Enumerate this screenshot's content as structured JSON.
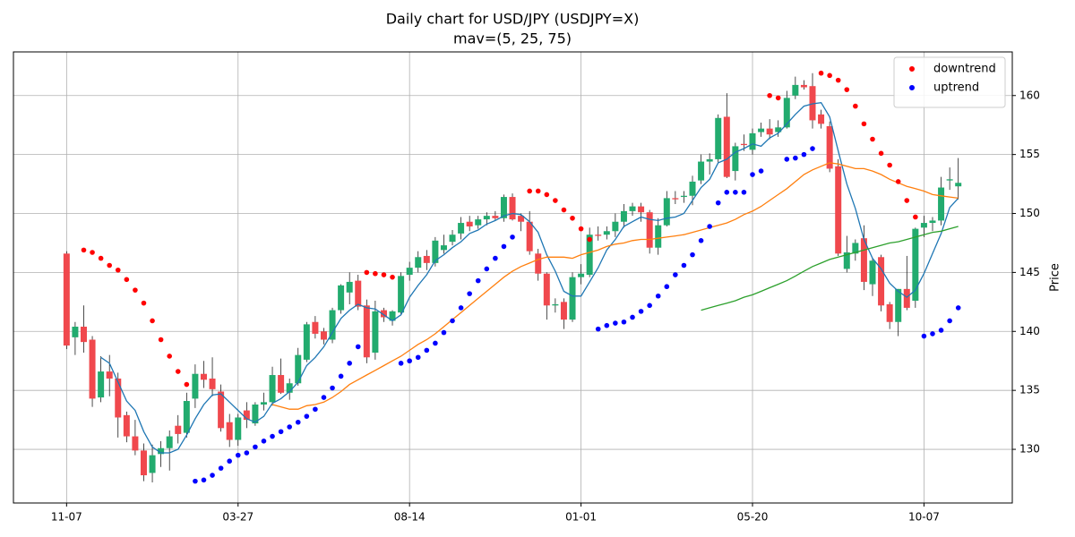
{
  "chart_data": {
    "type": "candlestick",
    "title": "Daily chart for USD/JPY (USDJPY=X)",
    "subtitle": "mav=(5, 25, 75)",
    "y_label": "Price",
    "categories": [
      "11-07",
      null,
      null,
      null,
      null,
      null,
      null,
      null,
      null,
      null,
      null,
      null,
      null,
      null,
      null,
      null,
      null,
      null,
      null,
      null,
      "03-27",
      null,
      null,
      null,
      null,
      null,
      null,
      null,
      null,
      null,
      null,
      null,
      null,
      null,
      null,
      null,
      null,
      null,
      null,
      null,
      "08-14",
      null,
      null,
      null,
      null,
      null,
      null,
      null,
      null,
      null,
      null,
      null,
      null,
      null,
      null,
      null,
      null,
      null,
      null,
      null,
      "01-01",
      null,
      null,
      null,
      null,
      null,
      null,
      null,
      null,
      null,
      null,
      null,
      null,
      null,
      null,
      null,
      null,
      null,
      null,
      null,
      "05-20",
      null,
      null,
      null,
      null,
      null,
      null,
      null,
      null,
      null,
      null,
      null,
      null,
      null,
      null,
      null,
      null,
      null,
      null,
      null,
      "10-07",
      null,
      null,
      null,
      null
    ],
    "open": [
      146.6,
      139.5,
      140.4,
      139.3,
      134.4,
      136.6,
      136.0,
      132.9,
      131.1,
      129.9,
      128.0,
      129.6,
      130.1,
      132.0,
      131.4,
      134.3,
      136.4,
      136.0,
      134.9,
      132.3,
      130.8,
      133.3,
      132.2,
      133.8,
      134.0,
      136.3,
      134.8,
      135.6,
      137.6,
      140.8,
      140.0,
      139.3,
      141.8,
      143.3,
      144.3,
      142.2,
      138.2,
      141.8,
      140.9,
      141.6,
      144.8,
      145.4,
      146.4,
      145.8,
      146.9,
      147.6,
      148.3,
      149.3,
      149.0,
      149.5,
      149.8,
      149.6,
      151.4,
      149.8,
      149.3,
      146.6,
      144.9,
      142.2,
      142.5,
      141.0,
      144.6,
      144.8,
      148.2,
      148.2,
      148.5,
      149.3,
      150.2,
      150.6,
      150.1,
      147.1,
      149.0,
      151.3,
      151.4,
      151.5,
      152.8,
      154.4,
      154.6,
      158.2,
      153.6,
      155.9,
      155.4,
      156.9,
      157.2,
      156.9,
      157.3,
      160.0,
      160.9,
      160.8,
      158.4,
      157.4,
      154.0,
      145.3,
      146.6,
      147.9,
      144.0,
      146.3,
      142.3,
      140.8,
      143.6,
      142.6,
      148.8,
      149.2,
      149.4,
      152.8,
      152.3
    ],
    "high": [
      146.8,
      140.8,
      142.2,
      139.6,
      137.9,
      138.0,
      136.5,
      133.2,
      132.5,
      130.5,
      130.4,
      130.7,
      131.6,
      132.9,
      134.8,
      137.2,
      137.5,
      137.8,
      135.5,
      133.0,
      133.0,
      134.0,
      134.0,
      134.8,
      137.0,
      137.7,
      136.0,
      138.6,
      140.8,
      141.3,
      140.3,
      142.0,
      144.0,
      145.0,
      144.8,
      142.7,
      142.6,
      142.0,
      141.8,
      145.0,
      145.9,
      146.8,
      146.9,
      148.0,
      148.2,
      148.6,
      149.7,
      149.8,
      149.8,
      150.1,
      150.2,
      151.6,
      151.7,
      150.0,
      150.2,
      147.0,
      145.0,
      142.8,
      142.8,
      145.0,
      145.7,
      148.8,
      148.9,
      148.9,
      150.0,
      150.8,
      150.9,
      150.9,
      150.3,
      149.6,
      151.9,
      151.9,
      151.9,
      153.2,
      155.0,
      155.1,
      158.4,
      160.2,
      156.0,
      156.7,
      157.2,
      157.7,
      158.0,
      157.9,
      160.4,
      161.6,
      161.3,
      161.9,
      158.8,
      157.8,
      154.6,
      148.1,
      147.8,
      149.0,
      146.2,
      146.5,
      142.5,
      143.6,
      146.4,
      148.8,
      149.8,
      149.7,
      153.1,
      153.9,
      154.7
    ],
    "low": [
      138.5,
      138.0,
      138.2,
      133.6,
      134.0,
      134.5,
      131.0,
      130.6,
      129.5,
      127.3,
      127.2,
      128.5,
      128.2,
      130.5,
      131.0,
      133.5,
      135.2,
      134.5,
      131.5,
      130.2,
      130.3,
      131.8,
      132.0,
      133.3,
      133.7,
      134.7,
      134.2,
      135.4,
      137.4,
      139.4,
      138.9,
      139.0,
      141.5,
      142.3,
      141.8,
      137.3,
      137.6,
      140.8,
      140.5,
      141.4,
      144.3,
      145.0,
      145.2,
      145.5,
      146.6,
      147.3,
      147.8,
      148.5,
      148.7,
      149.0,
      149.4,
      149.3,
      149.4,
      148.5,
      146.5,
      144.3,
      141.0,
      141.6,
      140.2,
      140.8,
      144.0,
      144.6,
      147.7,
      147.8,
      148.0,
      148.8,
      149.8,
      149.3,
      146.6,
      146.5,
      148.9,
      150.8,
      150.9,
      150.7,
      152.5,
      153.3,
      154.3,
      153.0,
      152.8,
      155.3,
      155.0,
      156.5,
      156.3,
      156.5,
      157.2,
      159.7,
      160.5,
      157.2,
      157.2,
      153.5,
      146.4,
      145.0,
      146.0,
      143.5,
      143.0,
      141.7,
      140.2,
      139.6,
      141.8,
      142.0,
      148.0,
      148.5,
      149.0,
      152.0,
      151.2
    ],
    "close": [
      138.8,
      140.4,
      139.1,
      134.3,
      136.6,
      136.0,
      132.7,
      131.1,
      129.9,
      127.8,
      129.5,
      130.1,
      131.1,
      131.3,
      134.1,
      136.4,
      135.9,
      135.1,
      131.8,
      130.8,
      132.7,
      132.5,
      133.8,
      134.0,
      136.3,
      134.8,
      135.6,
      138.0,
      140.6,
      139.8,
      139.3,
      141.8,
      143.9,
      144.2,
      142.1,
      137.8,
      141.7,
      141.2,
      141.7,
      144.7,
      145.4,
      146.3,
      145.8,
      147.7,
      147.3,
      148.2,
      149.2,
      148.9,
      149.5,
      149.8,
      149.6,
      151.4,
      149.5,
      149.3,
      146.8,
      144.9,
      142.2,
      142.3,
      141.0,
      144.6,
      144.9,
      148.2,
      148.1,
      148.5,
      149.3,
      150.2,
      150.6,
      150.1,
      147.1,
      149.0,
      151.3,
      151.2,
      151.5,
      152.7,
      154.4,
      154.6,
      158.1,
      153.1,
      155.7,
      155.8,
      156.8,
      157.2,
      156.7,
      157.3,
      159.8,
      160.9,
      160.7,
      157.9,
      157.6,
      153.8,
      146.6,
      146.7,
      147.5,
      144.2,
      146.0,
      142.2,
      140.8,
      143.6,
      142.0,
      148.7,
      149.2,
      149.4,
      152.2,
      152.9,
      152.6
    ],
    "up_color": "#22ab6e",
    "down_color": "#f0484d",
    "lines": [
      {
        "color": "#1f77b4",
        "values": [
          null,
          null,
          null,
          null,
          137.8,
          137.3,
          135.7,
          134.1,
          133.3,
          131.5,
          130.2,
          129.7,
          129.7,
          130.0,
          131.2,
          132.6,
          133.8,
          134.6,
          134.7,
          134.0,
          133.3,
          132.6,
          132.3,
          132.8,
          133.9,
          134.3,
          134.9,
          135.7,
          137.1,
          137.8,
          138.7,
          139.9,
          141.1,
          141.8,
          142.3,
          142.0,
          141.9,
          141.4,
          140.9,
          141.4,
          142.9,
          143.9,
          144.8,
          146.0,
          146.5,
          147.1,
          147.6,
          148.3,
          148.6,
          149.1,
          149.4,
          149.8,
          150.0,
          149.9,
          149.3,
          148.4,
          146.5,
          145.1,
          143.4,
          143.0,
          143.0,
          144.2,
          145.4,
          146.9,
          147.8,
          148.9,
          149.3,
          149.7,
          149.5,
          149.4,
          149.6,
          149.7,
          150.0,
          151.1,
          152.2,
          152.9,
          154.3,
          154.6,
          155.2,
          155.5,
          155.9,
          155.7,
          156.4,
          156.8,
          157.6,
          158.4,
          159.1,
          159.3,
          159.4,
          158.2,
          155.3,
          152.5,
          150.4,
          147.8,
          146.2,
          145.3,
          144.1,
          143.4,
          142.9,
          143.5,
          144.9,
          146.6,
          148.3,
          150.5,
          151.3
        ]
      },
      {
        "color": "#ff7f0e",
        "values": [
          null,
          null,
          null,
          null,
          null,
          null,
          null,
          null,
          null,
          null,
          null,
          null,
          null,
          null,
          null,
          null,
          null,
          null,
          null,
          null,
          null,
          null,
          null,
          null,
          133.8,
          133.6,
          133.4,
          133.4,
          133.7,
          133.8,
          134.0,
          134.4,
          134.9,
          135.5,
          135.9,
          136.3,
          136.7,
          137.1,
          137.5,
          137.9,
          138.4,
          138.9,
          139.3,
          139.8,
          140.4,
          141.0,
          141.6,
          142.2,
          142.8,
          143.4,
          144.0,
          144.6,
          145.1,
          145.5,
          145.8,
          146.1,
          146.3,
          146.3,
          146.3,
          146.2,
          146.5,
          146.7,
          146.9,
          147.2,
          147.4,
          147.5,
          147.7,
          147.8,
          147.8,
          147.9,
          148.0,
          148.1,
          148.2,
          148.4,
          148.6,
          148.8,
          149.0,
          149.2,
          149.5,
          149.9,
          150.2,
          150.6,
          151.1,
          151.6,
          152.1,
          152.7,
          153.3,
          153.7,
          154.0,
          154.3,
          154.2,
          154.0,
          153.8,
          153.8,
          153.6,
          153.3,
          152.9,
          152.6,
          152.3,
          152.1,
          151.9,
          151.6,
          151.5,
          151.4,
          151.3
        ]
      },
      {
        "color": "#2ca02c",
        "values": [
          null,
          null,
          null,
          null,
          null,
          null,
          null,
          null,
          null,
          null,
          null,
          null,
          null,
          null,
          null,
          null,
          null,
          null,
          null,
          null,
          null,
          null,
          null,
          null,
          null,
          null,
          null,
          null,
          null,
          null,
          null,
          null,
          null,
          null,
          null,
          null,
          null,
          null,
          null,
          null,
          null,
          null,
          null,
          null,
          null,
          null,
          null,
          null,
          null,
          null,
          null,
          null,
          null,
          null,
          null,
          null,
          null,
          null,
          null,
          null,
          null,
          null,
          null,
          null,
          null,
          null,
          null,
          null,
          null,
          null,
          null,
          null,
          null,
          null,
          141.8,
          142.0,
          142.2,
          142.4,
          142.6,
          142.9,
          143.1,
          143.4,
          143.7,
          144.0,
          144.3,
          144.7,
          145.1,
          145.5,
          145.8,
          146.1,
          146.3,
          146.5,
          146.7,
          146.9,
          147.1,
          147.3,
          147.5,
          147.6,
          147.8,
          148.0,
          148.2,
          148.4,
          148.5,
          148.7,
          148.9
        ]
      }
    ],
    "series": [
      {
        "name": "downtrend",
        "color": "#ff0000",
        "values": [
          null,
          null,
          146.9,
          146.7,
          146.2,
          145.6,
          145.2,
          144.4,
          143.5,
          142.4,
          140.9,
          139.3,
          137.9,
          136.6,
          135.5,
          null,
          null,
          null,
          null,
          null,
          null,
          null,
          null,
          null,
          null,
          null,
          null,
          null,
          null,
          null,
          null,
          null,
          null,
          null,
          null,
          145.0,
          144.9,
          144.8,
          144.6,
          null,
          null,
          null,
          null,
          null,
          null,
          null,
          null,
          null,
          null,
          null,
          null,
          null,
          null,
          null,
          151.9,
          151.9,
          151.6,
          151.1,
          150.3,
          149.6,
          148.7,
          147.8,
          null,
          null,
          null,
          null,
          null,
          null,
          null,
          null,
          null,
          null,
          null,
          null,
          null,
          null,
          null,
          null,
          null,
          null,
          null,
          null,
          160.0,
          159.8,
          null,
          null,
          null,
          null,
          161.9,
          161.7,
          161.3,
          160.5,
          159.1,
          157.6,
          156.3,
          155.1,
          154.1,
          152.7,
          151.1,
          149.7,
          null,
          null,
          null,
          null,
          null
        ]
      },
      {
        "name": "uptrend",
        "color": "#0000ff",
        "values": [
          null,
          null,
          null,
          null,
          null,
          null,
          null,
          null,
          null,
          null,
          null,
          null,
          null,
          null,
          null,
          127.3,
          127.4,
          127.8,
          128.4,
          129.0,
          129.5,
          129.7,
          130.2,
          130.7,
          131.1,
          131.5,
          131.9,
          132.3,
          132.8,
          133.4,
          134.4,
          135.2,
          136.2,
          137.3,
          138.7,
          null,
          null,
          null,
          null,
          137.3,
          137.5,
          137.8,
          138.4,
          139.0,
          139.9,
          140.9,
          142.0,
          143.2,
          144.3,
          145.3,
          146.2,
          147.2,
          148.0,
          null,
          null,
          null,
          null,
          null,
          null,
          null,
          null,
          null,
          140.2,
          140.5,
          140.7,
          140.8,
          141.2,
          141.7,
          142.2,
          143.0,
          143.8,
          144.8,
          145.6,
          146.5,
          147.7,
          148.9,
          150.9,
          151.8,
          151.8,
          151.8,
          153.3,
          153.6,
          null,
          null,
          154.6,
          154.7,
          155.0,
          155.5,
          null,
          null,
          null,
          null,
          null,
          null,
          null,
          null,
          null,
          null,
          null,
          null,
          139.6,
          139.8,
          140.1,
          140.9,
          142.0
        ]
      }
    ],
    "xlim": [
      -6.2,
      110.3
    ],
    "ylim": [
      125.45,
      163.7
    ],
    "yticks": [
      130,
      135,
      140,
      145,
      150,
      155,
      160
    ],
    "grid": true,
    "legend": "upper right"
  }
}
